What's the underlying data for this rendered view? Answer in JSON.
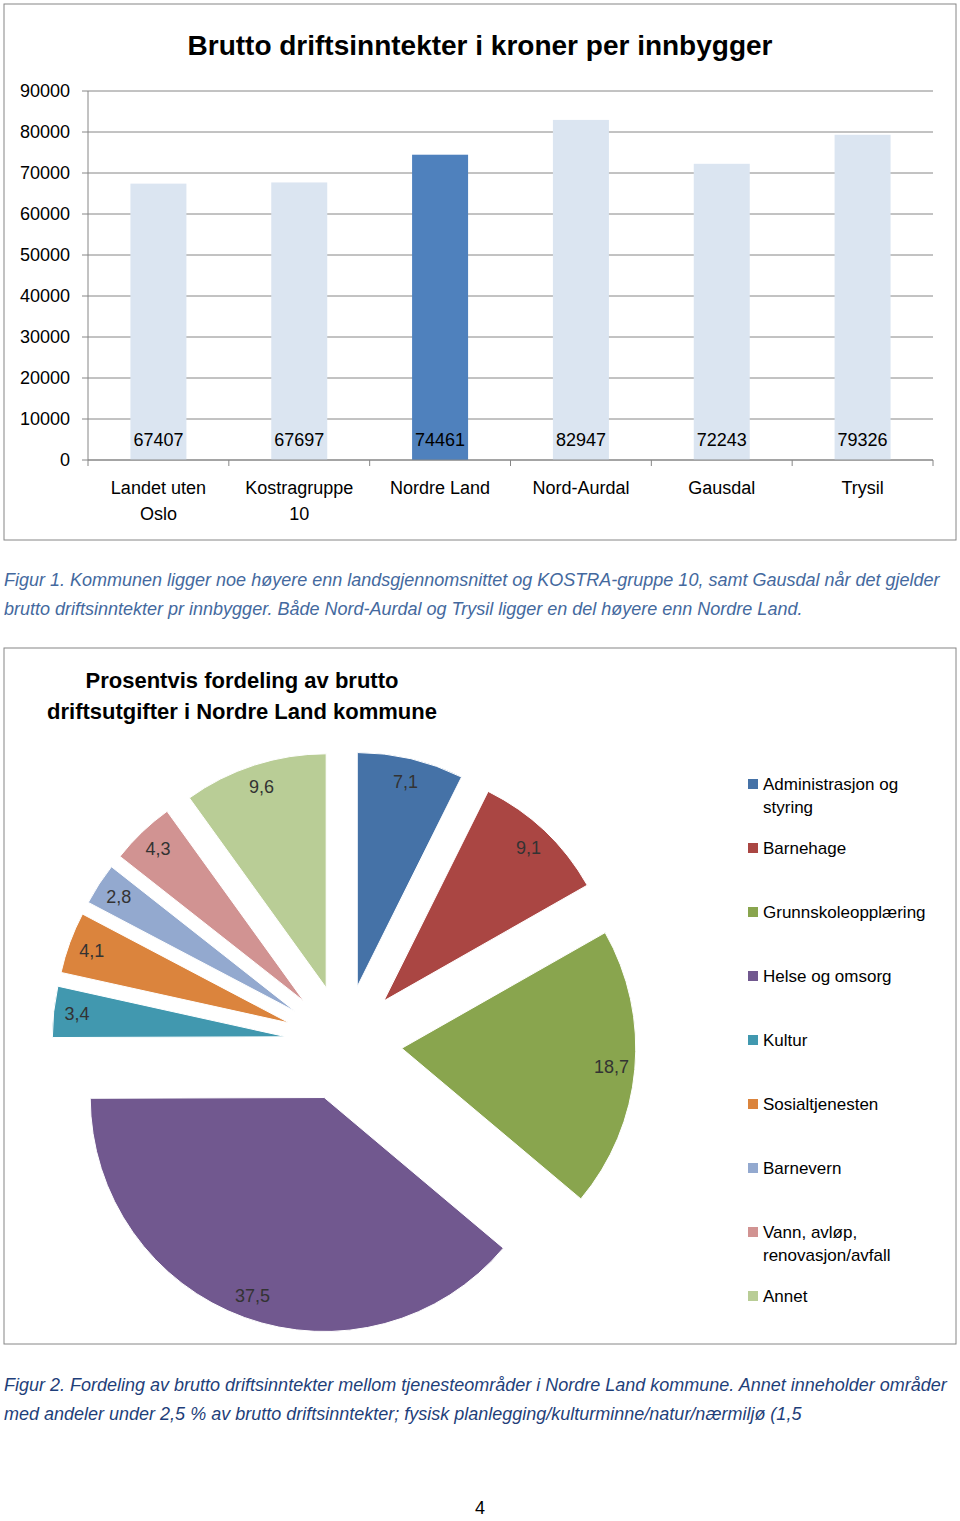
{
  "chart_data": [
    {
      "type": "bar",
      "title": "Brutto driftsinntekter i kroner per innbygger",
      "categories": [
        "Landet uten Oslo",
        "Kostragruppe 10",
        "Nordre Land",
        "Nord-Aurdal",
        "Gausdal",
        "Trysil"
      ],
      "values": [
        67407,
        67697,
        74461,
        82947,
        72243,
        79326
      ],
      "colors": [
        "#dbe5f1",
        "#dbe5f1",
        "#4f81bd",
        "#dbe5f1",
        "#dbe5f1",
        "#dbe5f1"
      ],
      "ylim": [
        0,
        90000
      ],
      "yticks": [
        0,
        10000,
        20000,
        30000,
        40000,
        50000,
        60000,
        70000,
        80000,
        90000
      ],
      "grid": true,
      "data_labels": true
    },
    {
      "type": "pie",
      "title": "Prosentvis fordeling av brutto driftsutgifter i Nordre Land kommune",
      "categories": [
        "Administrasjon og styring",
        "Barnehage",
        "Grunnskoleopplæring",
        "Helse og omsorg",
        "Kultur",
        "Sosialtjenesten",
        "Barnevern",
        "Vann, avløp, renovasjon/avfall",
        "Annet"
      ],
      "values": [
        7.1,
        9.1,
        18.7,
        37.5,
        3.4,
        4.1,
        2.8,
        4.3,
        9.6
      ],
      "value_labels": [
        "7,1",
        "9,1",
        "18,7",
        "37,5",
        "3,4",
        "4,1",
        "2,8",
        "4,3",
        "9,6"
      ],
      "colors": [
        "#4572a7",
        "#aa4643",
        "#89a54e",
        "#71588f",
        "#4198af",
        "#db843d",
        "#93a9cf",
        "#d19392",
        "#b9cd96"
      ],
      "legend": "right",
      "data_labels": true
    }
  ],
  "captions": [
    "Figur 1. Kommunen ligger noe høyere enn landsgjennomsnittet og KOSTRA-gruppe 10, samt Gausdal når det gjelder brutto driftsinntekter pr innbygger. Både Nord-Aurdal og Trysil ligger en del høyere enn Nordre Land.",
    "Figur 2. Fordeling av brutto driftsinntekter mellom tjenesteområder i Nordre Land kommune. Annet inneholder områder med andeler under 2,5 % av brutto driftsinntekter; fysisk planlegging/kulturminne/natur/nærmiljø (1,5"
  ],
  "page_number": 4
}
